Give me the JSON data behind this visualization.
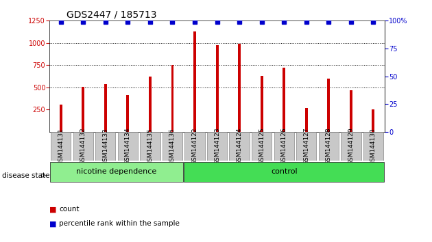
{
  "title": "GDS2447 / 185713",
  "samples": [
    "GSM144131",
    "GSM144132",
    "GSM144133",
    "GSM144134",
    "GSM144135",
    "GSM144136",
    "GSM144122",
    "GSM144123",
    "GSM144124",
    "GSM144125",
    "GSM144126",
    "GSM144127",
    "GSM144128",
    "GSM144129",
    "GSM144130"
  ],
  "counts": [
    305,
    505,
    540,
    415,
    625,
    755,
    1130,
    975,
    990,
    630,
    720,
    270,
    600,
    465,
    255
  ],
  "bar_color": "#cc0000",
  "percentile_color": "#0000cc",
  "ylim_left": [
    0,
    1250
  ],
  "ylim_right": [
    0,
    100
  ],
  "yticks_left": [
    250,
    500,
    750,
    1000,
    1250
  ],
  "yticks_right": [
    0,
    25,
    50,
    75,
    100
  ],
  "dotted_lines": [
    500,
    750,
    1000
  ],
  "groups": [
    {
      "label": "nicotine dependence",
      "start": 0,
      "end": 6,
      "color": "#90ee90"
    },
    {
      "label": "control",
      "start": 6,
      "end": 15,
      "color": "#44dd55"
    }
  ],
  "group_label_prefix": "disease state",
  "legend_count_label": "count",
  "legend_percentile_label": "percentile rank within the sample",
  "plot_bg": "#ffffff",
  "title_fontsize": 10,
  "tick_fontsize": 7,
  "bar_width": 0.12,
  "xtick_box_color": "#c8c8c8",
  "n_samples": 15
}
